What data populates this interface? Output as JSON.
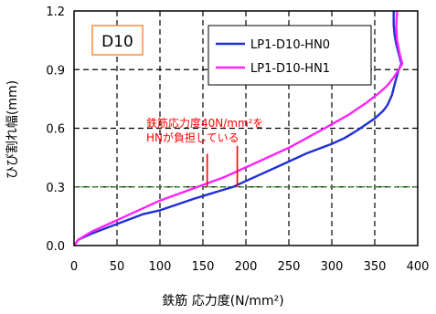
{
  "chart_data": {
    "type": "line",
    "panel_label": "D10",
    "xlabel": "鉄筋 応力度(N/mm²)",
    "ylabel": "ひび割れ幅(mm)",
    "xlim": [
      0,
      400
    ],
    "ylim": [
      0,
      1.2
    ],
    "x_ticks": [
      "0",
      "50",
      "100",
      "150",
      "200",
      "250",
      "300",
      "350",
      "400"
    ],
    "y_ticks": [
      "0.0",
      "0.3",
      "0.6",
      "0.9",
      "1.2"
    ],
    "grid": "dashed",
    "legend_position": "top-right",
    "series": [
      {
        "name": "LP1-D10-HN0",
        "color": "#1f2fd6",
        "points": [
          [
            0,
            0
          ],
          [
            5,
            0.03
          ],
          [
            20,
            0.06
          ],
          [
            50,
            0.11
          ],
          [
            80,
            0.16
          ],
          [
            100,
            0.18
          ],
          [
            120,
            0.21
          ],
          [
            140,
            0.24
          ],
          [
            155,
            0.26
          ],
          [
            170,
            0.28
          ],
          [
            185,
            0.3
          ],
          [
            200,
            0.33
          ],
          [
            220,
            0.37
          ],
          [
            245,
            0.42
          ],
          [
            270,
            0.47
          ],
          [
            300,
            0.52
          ],
          [
            315,
            0.55
          ],
          [
            330,
            0.59
          ],
          [
            350,
            0.65
          ],
          [
            360,
            0.69
          ],
          [
            365,
            0.72
          ],
          [
            370,
            0.77
          ],
          [
            374,
            0.84
          ],
          [
            378,
            0.9
          ],
          [
            381,
            0.93
          ],
          [
            378,
            0.98
          ],
          [
            375,
            1.03
          ],
          [
            373,
            1.08
          ],
          [
            372,
            1.13
          ],
          [
            372,
            1.2
          ]
        ]
      },
      {
        "name": "LP1-D10-HN1",
        "color": "#ff22ff",
        "points": [
          [
            0,
            0
          ],
          [
            5,
            0.03
          ],
          [
            20,
            0.07
          ],
          [
            50,
            0.13
          ],
          [
            80,
            0.19
          ],
          [
            100,
            0.23
          ],
          [
            125,
            0.27
          ],
          [
            150,
            0.31
          ],
          [
            175,
            0.35
          ],
          [
            200,
            0.4
          ],
          [
            225,
            0.45
          ],
          [
            250,
            0.5
          ],
          [
            275,
            0.56
          ],
          [
            300,
            0.62
          ],
          [
            320,
            0.67
          ],
          [
            340,
            0.73
          ],
          [
            355,
            0.78
          ],
          [
            365,
            0.82
          ],
          [
            372,
            0.86
          ],
          [
            378,
            0.9
          ],
          [
            382,
            0.93
          ],
          [
            379,
            0.98
          ],
          [
            376,
            1.05
          ],
          [
            375,
            1.12
          ],
          [
            376,
            1.2
          ]
        ]
      }
    ],
    "reference_line": {
      "y": 0.3,
      "color": "#3a9a2a",
      "style": "dashed"
    },
    "annotation": {
      "line1": "鉄筋応力度40N/mm²を",
      "line2": "HNが負担している",
      "color": "#ff0000",
      "markers": [
        {
          "x": 155,
          "y_from": 0.3,
          "y_to": 0.47
        },
        {
          "x": 190,
          "y_from": 0.3,
          "y_to": 0.51
        }
      ]
    }
  }
}
